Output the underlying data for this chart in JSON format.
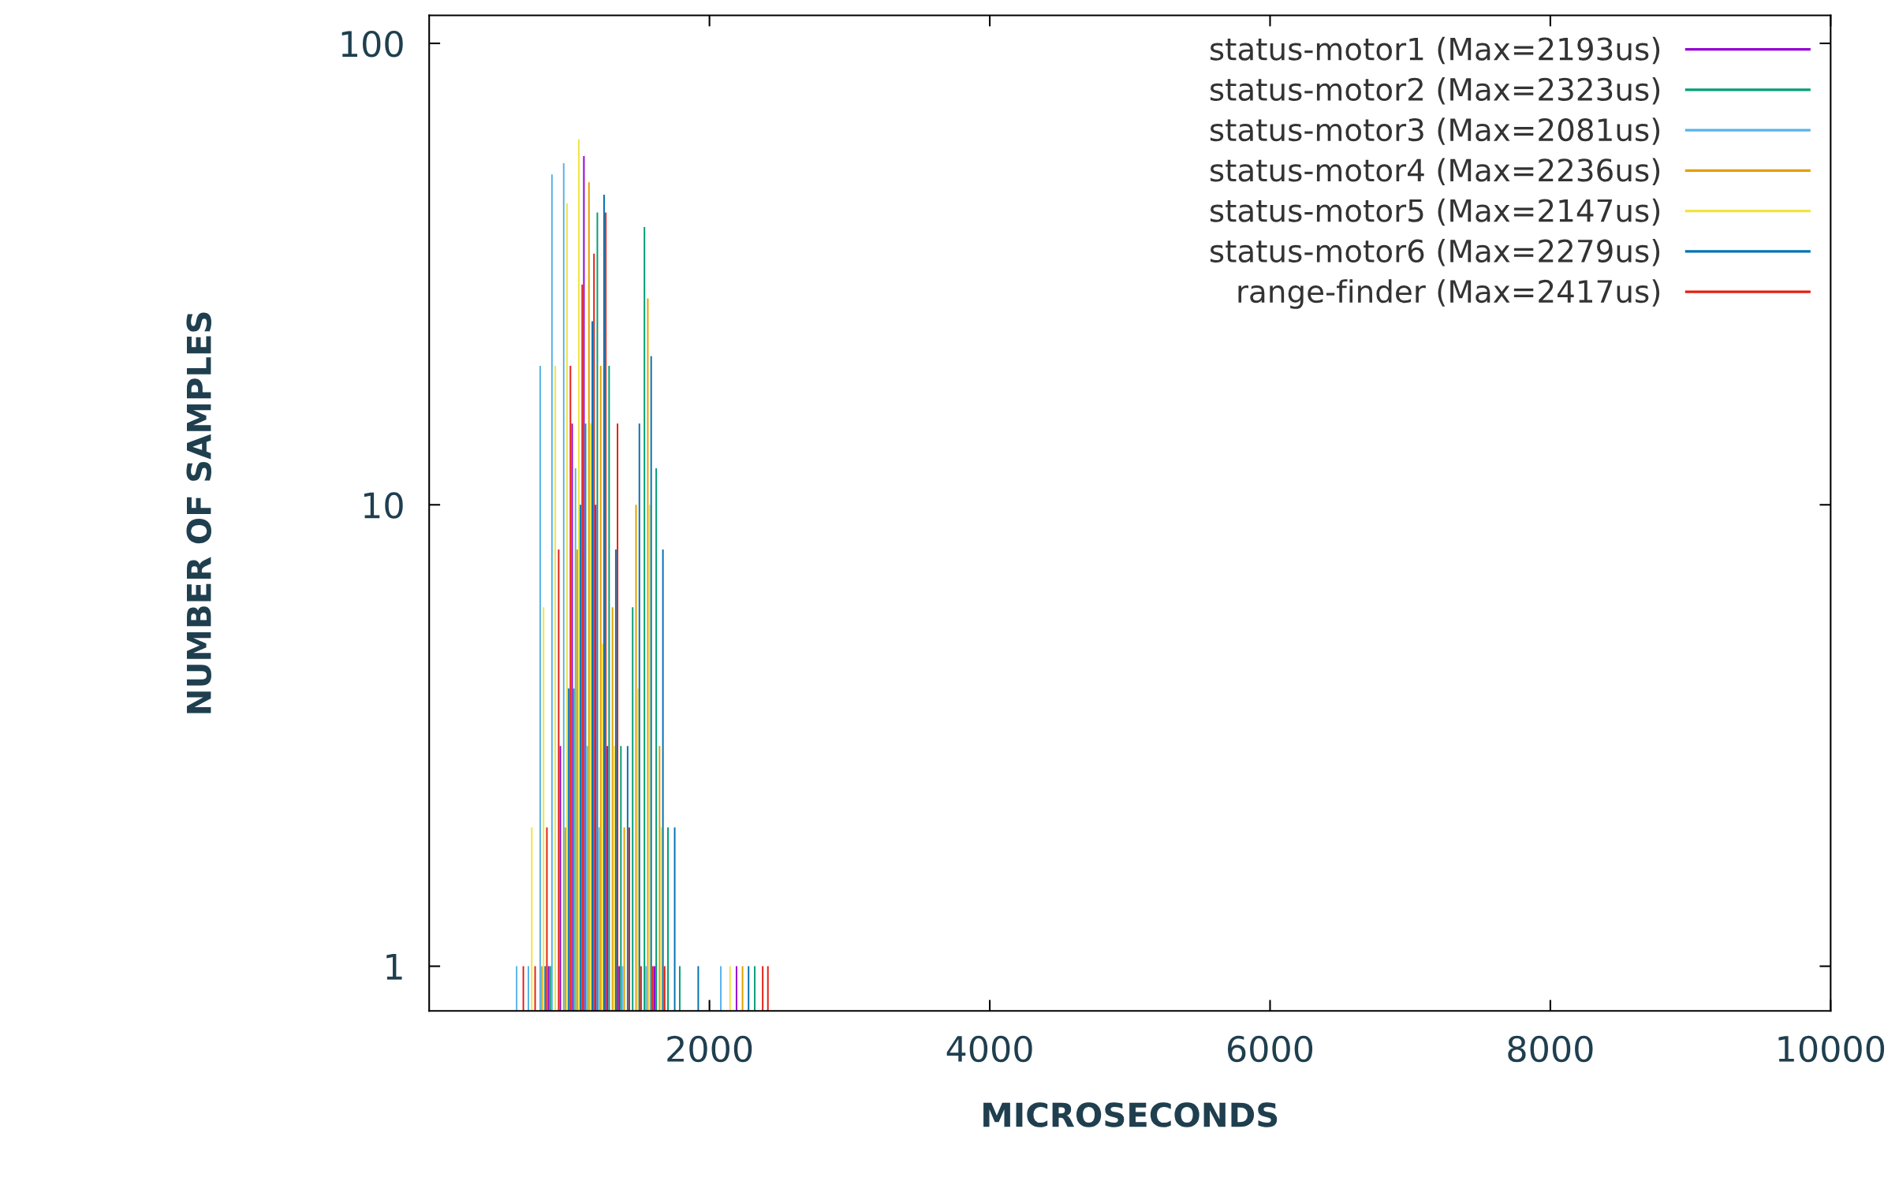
{
  "chart_data": {
    "type": "bar",
    "xlabel": "MICROSECONDS",
    "ylabel": "NUMBER OF SAMPLES",
    "log": "y",
    "xlim": [
      0,
      10000
    ],
    "xticks": [
      2000,
      4000,
      6000,
      8000,
      10000
    ],
    "ylim": [
      0.8,
      115
    ],
    "yticks": [
      1,
      10,
      100
    ],
    "legend": "top right",
    "grid": false,
    "series": [
      {
        "name": "status-motor1 (Max=2193us)",
        "color": "#9400d3",
        "x": [
          852,
          936,
          1020,
          1104,
          1188,
          1272,
          1356,
          1608,
          2193
        ],
        "values": [
          1,
          3,
          15,
          57,
          10,
          3,
          1,
          1,
          1
        ]
      },
      {
        "name": "status-motor2 (Max=2323us)",
        "color": "#009e73",
        "x": [
          864,
          1032,
          1116,
          1200,
          1284,
          1368,
          1452,
          1536,
          1620,
          1704,
          1788,
          2323
        ],
        "values": [
          1,
          4,
          15,
          43,
          20,
          3,
          6,
          40,
          12,
          2,
          1,
          1
        ]
      },
      {
        "name": "status-motor3 (Max=2081us)",
        "color": "#56b4e9",
        "x": [
          624,
          708,
          792,
          876,
          960,
          1044,
          1128,
          1212,
          1380,
          1548,
          2081
        ],
        "values": [
          1,
          1,
          20,
          52,
          55,
          12,
          3,
          2,
          1,
          1,
          1
        ]
      },
      {
        "name": "status-motor4 (Max=2236us)",
        "color": "#e69f00",
        "x": [
          804,
          972,
          1056,
          1140,
          1224,
          1308,
          1392,
          1476,
          1560,
          1644,
          2236
        ],
        "values": [
          1,
          2,
          8,
          50,
          20,
          6,
          2,
          10,
          28,
          3,
          1
        ]
      },
      {
        "name": "status-motor5 (Max=2147us)",
        "color": "#f0e442",
        "x": [
          732,
          816,
          900,
          984,
          1068,
          1152,
          1236,
          1320,
          1488,
          1572,
          1656,
          2147
        ],
        "values": [
          2,
          6,
          20,
          45,
          62,
          15,
          5,
          3,
          4,
          10,
          2,
          1
        ]
      },
      {
        "name": "status-motor6 (Max=2279us)",
        "color": "#0072b2",
        "x": [
          828,
          996,
          1080,
          1164,
          1248,
          1332,
          1416,
          1500,
          1584,
          1668,
          1752,
          1920,
          2279
        ],
        "values": [
          1,
          4,
          10,
          25,
          47,
          8,
          3,
          15,
          21,
          8,
          2,
          1,
          1
        ]
      },
      {
        "name": "range-finder (Max=2417us)",
        "color": "#e51e10",
        "x": [
          672,
          756,
          840,
          924,
          1008,
          1092,
          1176,
          1260,
          1344,
          1428,
          1512,
          1596,
          1680,
          2380,
          2417
        ],
        "values": [
          1,
          1,
          2,
          8,
          20,
          30,
          35,
          43,
          15,
          2,
          1,
          1,
          1,
          1,
          1
        ]
      }
    ]
  }
}
